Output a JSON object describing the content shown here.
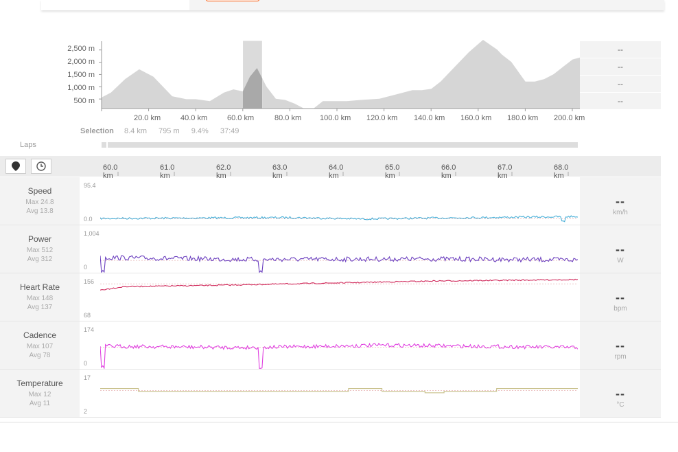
{
  "elevation": {
    "y_ticks": [
      "2,500 m",
      "2,000 m",
      "1,500 m",
      "1,000 m",
      "500 m"
    ],
    "x_ticks": [
      "20.0 km",
      "40.0 km",
      "60.0 km",
      "80.0 km",
      "100.0 km",
      "120.0 km",
      "140.0 km",
      "160.0 km",
      "180.0 km",
      "200.0 km"
    ],
    "summary": [
      "--",
      "--",
      "--",
      "--"
    ]
  },
  "selection": {
    "label": "Selection",
    "distance": "8.4 km",
    "elevation": "795 m",
    "grade": "9.4%",
    "time": "37:49"
  },
  "laps": {
    "label": "Laps"
  },
  "toolbar": {
    "icons": [
      "map-pin-icon",
      "clock-icon"
    ]
  },
  "scale_ticks": [
    "60.0 km",
    "61.0 km",
    "62.0 km",
    "63.0 km",
    "64.0 km",
    "65.0 km",
    "66.0 km",
    "67.0 km",
    "68.0 km"
  ],
  "streams": [
    {
      "name": "Speed",
      "max": "Max 24.8",
      "avg": "Avg 13.8",
      "ymax": "95.4",
      "ymin": "0.0",
      "value": "--",
      "unit": "km/h",
      "color": "#4ab0d8"
    },
    {
      "name": "Power",
      "max": "Max 512",
      "avg": "Avg 312",
      "ymax": "1,004",
      "ymin": "0",
      "value": "--",
      "unit": "W",
      "color": "#6b3fbf"
    },
    {
      "name": "Heart Rate",
      "max": "Max 148",
      "avg": "Avg 137",
      "ymax": "156",
      "ymin": "68",
      "value": "--",
      "unit": "bpm",
      "color": "#d0285a"
    },
    {
      "name": "Cadence",
      "max": "Max 107",
      "avg": "Avg 78",
      "ymax": "174",
      "ymin": "0",
      "value": "--",
      "unit": "rpm",
      "color": "#e040e0"
    },
    {
      "name": "Temperature",
      "max": "Max 12",
      "avg": "Avg 11",
      "ymax": "17",
      "ymin": "2",
      "value": "--",
      "unit": "°C",
      "color": "#c8c08a"
    }
  ],
  "chart_data": [
    {
      "type": "area",
      "xlim": [
        0,
        204
      ],
      "ylim": [
        0,
        2800
      ],
      "x": [
        0,
        4,
        10,
        16,
        22,
        30,
        36,
        40,
        46,
        52,
        56,
        60,
        63,
        66,
        70,
        74,
        78,
        82,
        86,
        90,
        94,
        98,
        104,
        110,
        118,
        126,
        132,
        136,
        140,
        144,
        150,
        156,
        162,
        168,
        170,
        174,
        180,
        184,
        188,
        192,
        196,
        200,
        204
      ],
      "y": [
        450,
        650,
        1200,
        1600,
        1300,
        500,
        380,
        380,
        300,
        650,
        780,
        700,
        1300,
        1650,
        900,
        400,
        350,
        200,
        0,
        0,
        300,
        300,
        300,
        350,
        400,
        600,
        750,
        750,
        800,
        1100,
        1700,
        2300,
        2800,
        2400,
        2200,
        1900,
        1100,
        1100,
        1200,
        1400,
        1700,
        2000,
        2100
      ],
      "selection_km": [
        59.9,
        68.3
      ]
    },
    {
      "type": "line",
      "series": [
        {
          "name": "Speed",
          "xlim": [
            59.7,
            68.3
          ],
          "ylim": [
            0,
            95.4
          ],
          "avg": 13.8
        },
        {
          "name": "Power",
          "xlim": [
            59.7,
            68.3
          ],
          "ylim": [
            0,
            1004
          ],
          "avg": 312
        },
        {
          "name": "Heart Rate",
          "xlim": [
            59.7,
            68.3
          ],
          "ylim": [
            68,
            156
          ],
          "avg": 137
        },
        {
          "name": "Cadence",
          "xlim": [
            59.7,
            68.3
          ],
          "ylim": [
            0,
            174
          ],
          "avg": 78
        },
        {
          "name": "Temperature",
          "xlim": [
            59.7,
            68.3
          ],
          "ylim": [
            2,
            17
          ],
          "avg": 11
        }
      ]
    }
  ]
}
